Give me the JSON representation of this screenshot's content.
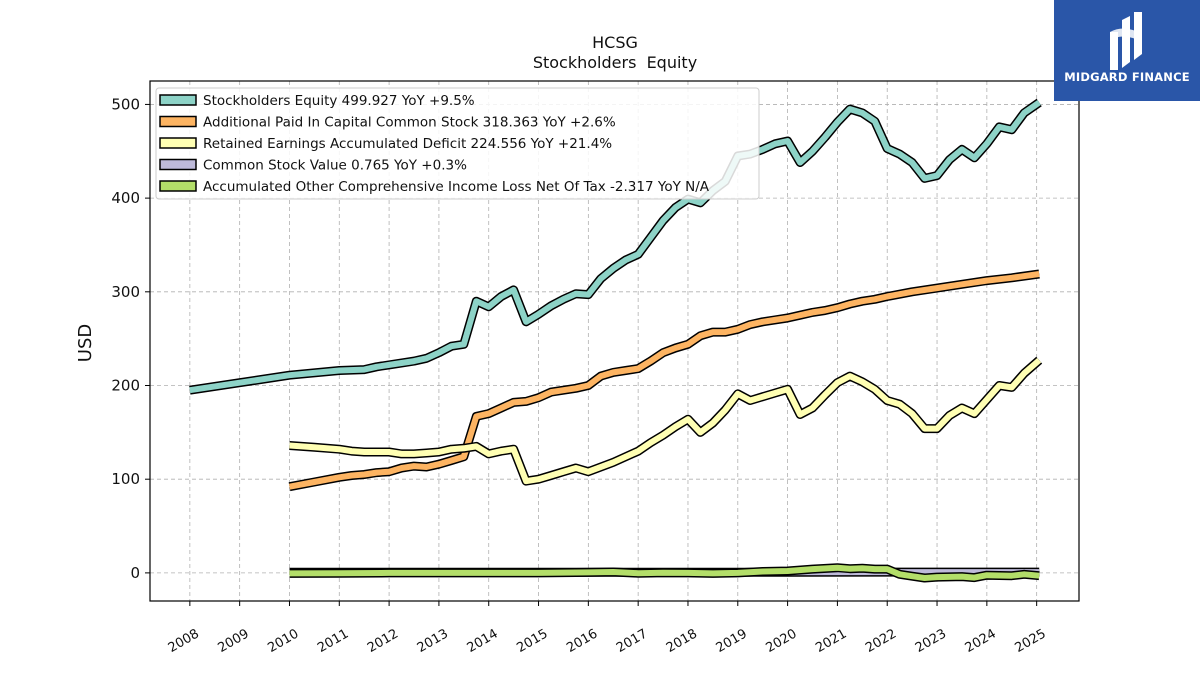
{
  "chart_data": {
    "type": "line",
    "title": "HCSG",
    "subtitle": "Stockholders  Equity",
    "ylabel": "USD",
    "xlabel": "",
    "ylim": [
      -30,
      525
    ],
    "xlim": [
      2007.2,
      2025.85
    ],
    "yticks": [
      0,
      100,
      200,
      300,
      400,
      500
    ],
    "xticks": [
      "2008",
      "2009",
      "2010",
      "2011",
      "2012",
      "2013",
      "2014",
      "2015",
      "2016",
      "2017",
      "2018",
      "2019",
      "2020",
      "2021",
      "2022",
      "2023",
      "2024",
      "2025"
    ],
    "grid": true,
    "legend_position": "top-left",
    "series": [
      {
        "name": "Stockholders Equity",
        "legend_label": "Stockholders Equity  499.927 YoY +9.5%",
        "color": "#8dd3c7",
        "x": [
          2008.0,
          2009.0,
          2010.0,
          2011.0,
          2011.5,
          2011.75,
          2012.0,
          2012.5,
          2012.75,
          2013.0,
          2013.25,
          2013.5,
          2013.75,
          2014.0,
          2014.25,
          2014.5,
          2014.75,
          2015.0,
          2015.25,
          2015.5,
          2015.75,
          2016.0,
          2016.25,
          2016.5,
          2016.75,
          2017.0,
          2017.25,
          2017.5,
          2017.75,
          2018.0,
          2018.25,
          2018.5,
          2018.75,
          2019.0,
          2019.25,
          2019.5,
          2019.75,
          2020.0,
          2020.25,
          2020.5,
          2020.75,
          2021.0,
          2021.25,
          2021.5,
          2021.75,
          2022.0,
          2022.25,
          2022.5,
          2022.75,
          2023.0,
          2023.25,
          2023.5,
          2023.75,
          2024.0,
          2024.25,
          2024.5,
          2024.75,
          2025.05
        ],
        "values": [
          195,
          203,
          211,
          216,
          217,
          220,
          222,
          226,
          229,
          235,
          242,
          244,
          290,
          284,
          295,
          302,
          268,
          276,
          285,
          292,
          298,
          297,
          314,
          325,
          334,
          340,
          358,
          376,
          390,
          399,
          395,
          408,
          418,
          445,
          447,
          452,
          458,
          461,
          438,
          450,
          465,
          481,
          495,
          491,
          482,
          453,
          447,
          438,
          421,
          424,
          441,
          452,
          443,
          458,
          476,
          473,
          491,
          502
        ]
      },
      {
        "name": "Additional Paid In Capital Common Stock",
        "legend_label": "Additional Paid In Capital Common Stock  318.363 YoY +2.6%",
        "color": "#fdb462",
        "x": [
          2010.0,
          2010.5,
          2011.0,
          2011.25,
          2011.5,
          2011.75,
          2012.0,
          2012.25,
          2012.5,
          2012.75,
          2013.0,
          2013.25,
          2013.5,
          2013.75,
          2014.0,
          2014.25,
          2014.5,
          2014.75,
          2015.0,
          2015.25,
          2015.5,
          2015.75,
          2016.0,
          2016.25,
          2016.5,
          2016.75,
          2017.0,
          2017.25,
          2017.5,
          2017.75,
          2018.0,
          2018.25,
          2018.5,
          2018.75,
          2019.0,
          2019.25,
          2019.5,
          2019.75,
          2020.0,
          2020.25,
          2020.5,
          2020.75,
          2021.0,
          2021.25,
          2021.5,
          2021.75,
          2022.0,
          2022.5,
          2023.0,
          2023.5,
          2024.0,
          2024.5,
          2025.05
        ],
        "values": [
          92,
          97,
          102,
          104,
          105,
          107,
          108,
          112,
          114,
          113,
          116,
          120,
          124,
          167,
          170,
          176,
          182,
          183,
          187,
          193,
          195,
          197,
          200,
          210,
          214,
          216,
          218,
          226,
          235,
          240,
          244,
          253,
          257,
          257,
          260,
          265,
          268,
          270,
          272,
          275,
          278,
          280,
          283,
          287,
          290,
          292,
          295,
          300,
          304,
          308,
          312,
          315,
          319
        ]
      },
      {
        "name": "Retained Earnings Accumulated Deficit",
        "legend_label": "Retained Earnings Accumulated Deficit  224.556 YoY +21.4%",
        "color": "#ffffb3",
        "x": [
          2010.0,
          2010.5,
          2011.0,
          2011.25,
          2011.5,
          2011.75,
          2012.0,
          2012.25,
          2012.5,
          2012.75,
          2013.0,
          2013.25,
          2013.5,
          2013.75,
          2014.0,
          2014.25,
          2014.5,
          2014.75,
          2015.0,
          2015.25,
          2015.5,
          2015.75,
          2016.0,
          2016.5,
          2017.0,
          2017.25,
          2017.5,
          2017.75,
          2018.0,
          2018.25,
          2018.5,
          2018.75,
          2019.0,
          2019.25,
          2019.5,
          2019.75,
          2020.0,
          2020.25,
          2020.5,
          2020.75,
          2021.0,
          2021.25,
          2021.5,
          2021.75,
          2022.0,
          2022.25,
          2022.5,
          2022.75,
          2023.0,
          2023.25,
          2023.5,
          2023.75,
          2024.0,
          2024.25,
          2024.5,
          2024.75,
          2025.05
        ],
        "values": [
          136,
          134,
          132,
          130,
          129,
          129,
          129,
          127,
          127,
          128,
          129,
          132,
          133,
          135,
          127,
          130,
          132,
          98,
          100,
          104,
          108,
          112,
          108,
          118,
          130,
          139,
          147,
          156,
          164,
          150,
          160,
          174,
          191,
          184,
          188,
          192,
          196,
          169,
          176,
          190,
          203,
          210,
          204,
          196,
          184,
          180,
          170,
          154,
          154,
          168,
          176,
          170,
          185,
          200,
          198,
          213,
          227
        ]
      },
      {
        "name": "Common Stock Value",
        "legend_label": "Common Stock Value  0.765 YoY +0.3%",
        "color": "#bebada",
        "x": [
          2010.0,
          2012.0,
          2014.0,
          2016.0,
          2018.0,
          2020.0,
          2022.0,
          2024.0,
          2025.05
        ],
        "values": [
          0.7,
          0.7,
          0.7,
          0.7,
          0.7,
          0.7,
          0.8,
          0.8,
          0.8
        ]
      },
      {
        "name": "Accumulated Other Comprehensive Income Loss Net Of Tax",
        "legend_label": "Accumulated Other Comprehensive Income Loss Net Of Tax  -2.317 YoY N/A",
        "color": "#b3de69",
        "x": [
          2010.0,
          2011.0,
          2012.0,
          2013.0,
          2014.0,
          2015.0,
          2016.0,
          2016.5,
          2017.0,
          2017.5,
          2018.0,
          2018.5,
          2019.0,
          2019.5,
          2020.0,
          2020.5,
          2021.0,
          2021.25,
          2021.5,
          2021.75,
          2022.0,
          2022.25,
          2022.5,
          2022.75,
          2023.0,
          2023.5,
          2023.75,
          2024.0,
          2024.5,
          2024.75,
          2025.05
        ],
        "values": [
          -0.5,
          -0.3,
          0.0,
          0.0,
          0.0,
          0.0,
          0.5,
          1.0,
          -0.3,
          0.2,
          0.0,
          -0.5,
          0.0,
          1.5,
          2.0,
          4.0,
          5.5,
          4.5,
          5.0,
          4.0,
          4.0,
          -1.5,
          -3.5,
          -5.5,
          -4.5,
          -4.0,
          -5.0,
          -2.5,
          -3.0,
          -1.5,
          -3.0
        ]
      }
    ]
  },
  "logo": {
    "text": "MIDGARD FINANCE",
    "icon": "midgard-logo-icon"
  }
}
